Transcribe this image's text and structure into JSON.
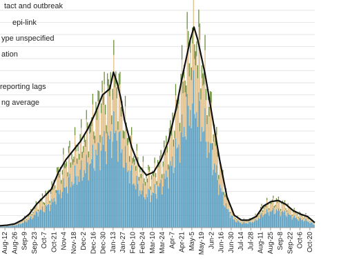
{
  "chart_data": {
    "type": "bar",
    "title": "",
    "xlabel": "",
    "ylabel": "",
    "grid": true,
    "legend_placement": "top-left",
    "legend": [
      {
        "label": "tact and outbreak",
        "color": "#6b8e3a",
        "swatch": false
      },
      {
        "label": "epi-link",
        "color": "#e2c089",
        "swatch": false
      },
      {
        "label": "ype unspecified",
        "color": "#7d8a6a",
        "swatch": false
      },
      {
        "label": "ation",
        "color": "#5a9ec0",
        "swatch": false
      },
      {
        "label": "reporting lags",
        "color": "#cccccc",
        "swatch": false
      },
      {
        "label": "ng average",
        "color": "#000000",
        "swatch": false
      }
    ],
    "x_tick_labels": [
      "Aug-12",
      "Aug-26",
      "Sep-9",
      "Sep-23",
      "Oct-7",
      "Oct-21",
      "Nov-4",
      "Nov-18",
      "Dec-2",
      "Dec-16",
      "Dec-30",
      "Jan-13",
      "Jan-27",
      "Feb-10",
      "Feb-24",
      "Mar-10",
      "Mar-24",
      "Apr-7",
      "Apr-21",
      "May-5",
      "May-19",
      "Jun-2",
      "Jun-16",
      "Jun-30",
      "Jul-14",
      "Jul-28",
      "Aug-11",
      "Aug-25",
      "Sep-8",
      "Sep-22",
      "Oct-6",
      "Oct-20"
    ],
    "y_max": 360,
    "series": [
      {
        "name": "ation",
        "color": "#5a9ec0"
      },
      {
        "name": "epi-link",
        "color": "#e2c089"
      },
      {
        "name": "tact and outbreak",
        "color": "#6b8e3a"
      },
      {
        "name": "ng average",
        "color": "#000000"
      }
    ],
    "moving_average": [
      {
        "x": 0,
        "y": 3
      },
      {
        "x": 2,
        "y": 4
      },
      {
        "x": 4,
        "y": 6
      },
      {
        "x": 6,
        "y": 12
      },
      {
        "x": 8,
        "y": 22
      },
      {
        "x": 10,
        "y": 38
      },
      {
        "x": 12,
        "y": 50
      },
      {
        "x": 14,
        "y": 62
      },
      {
        "x": 16,
        "y": 90
      },
      {
        "x": 18,
        "y": 110
      },
      {
        "x": 20,
        "y": 125
      },
      {
        "x": 22,
        "y": 140
      },
      {
        "x": 24,
        "y": 160
      },
      {
        "x": 26,
        "y": 185
      },
      {
        "x": 28,
        "y": 215
      },
      {
        "x": 30,
        "y": 225
      },
      {
        "x": 31,
        "y": 252
      },
      {
        "x": 32,
        "y": 235
      },
      {
        "x": 33,
        "y": 210
      },
      {
        "x": 34,
        "y": 175
      },
      {
        "x": 36,
        "y": 130
      },
      {
        "x": 38,
        "y": 100
      },
      {
        "x": 40,
        "y": 85
      },
      {
        "x": 42,
        "y": 90
      },
      {
        "x": 44,
        "y": 110
      },
      {
        "x": 46,
        "y": 140
      },
      {
        "x": 48,
        "y": 190
      },
      {
        "x": 50,
        "y": 250
      },
      {
        "x": 52,
        "y": 305
      },
      {
        "x": 53,
        "y": 325
      },
      {
        "x": 54,
        "y": 305
      },
      {
        "x": 56,
        "y": 250
      },
      {
        "x": 58,
        "y": 180
      },
      {
        "x": 60,
        "y": 110
      },
      {
        "x": 62,
        "y": 50
      },
      {
        "x": 64,
        "y": 20
      },
      {
        "x": 66,
        "y": 12
      },
      {
        "x": 68,
        "y": 12
      },
      {
        "x": 70,
        "y": 18
      },
      {
        "x": 72,
        "y": 35
      },
      {
        "x": 74,
        "y": 42
      },
      {
        "x": 76,
        "y": 44
      },
      {
        "x": 78,
        "y": 38
      },
      {
        "x": 80,
        "y": 28
      },
      {
        "x": 82,
        "y": 22
      },
      {
        "x": 84,
        "y": 18
      },
      {
        "x": 86,
        "y": 8
      }
    ]
  }
}
